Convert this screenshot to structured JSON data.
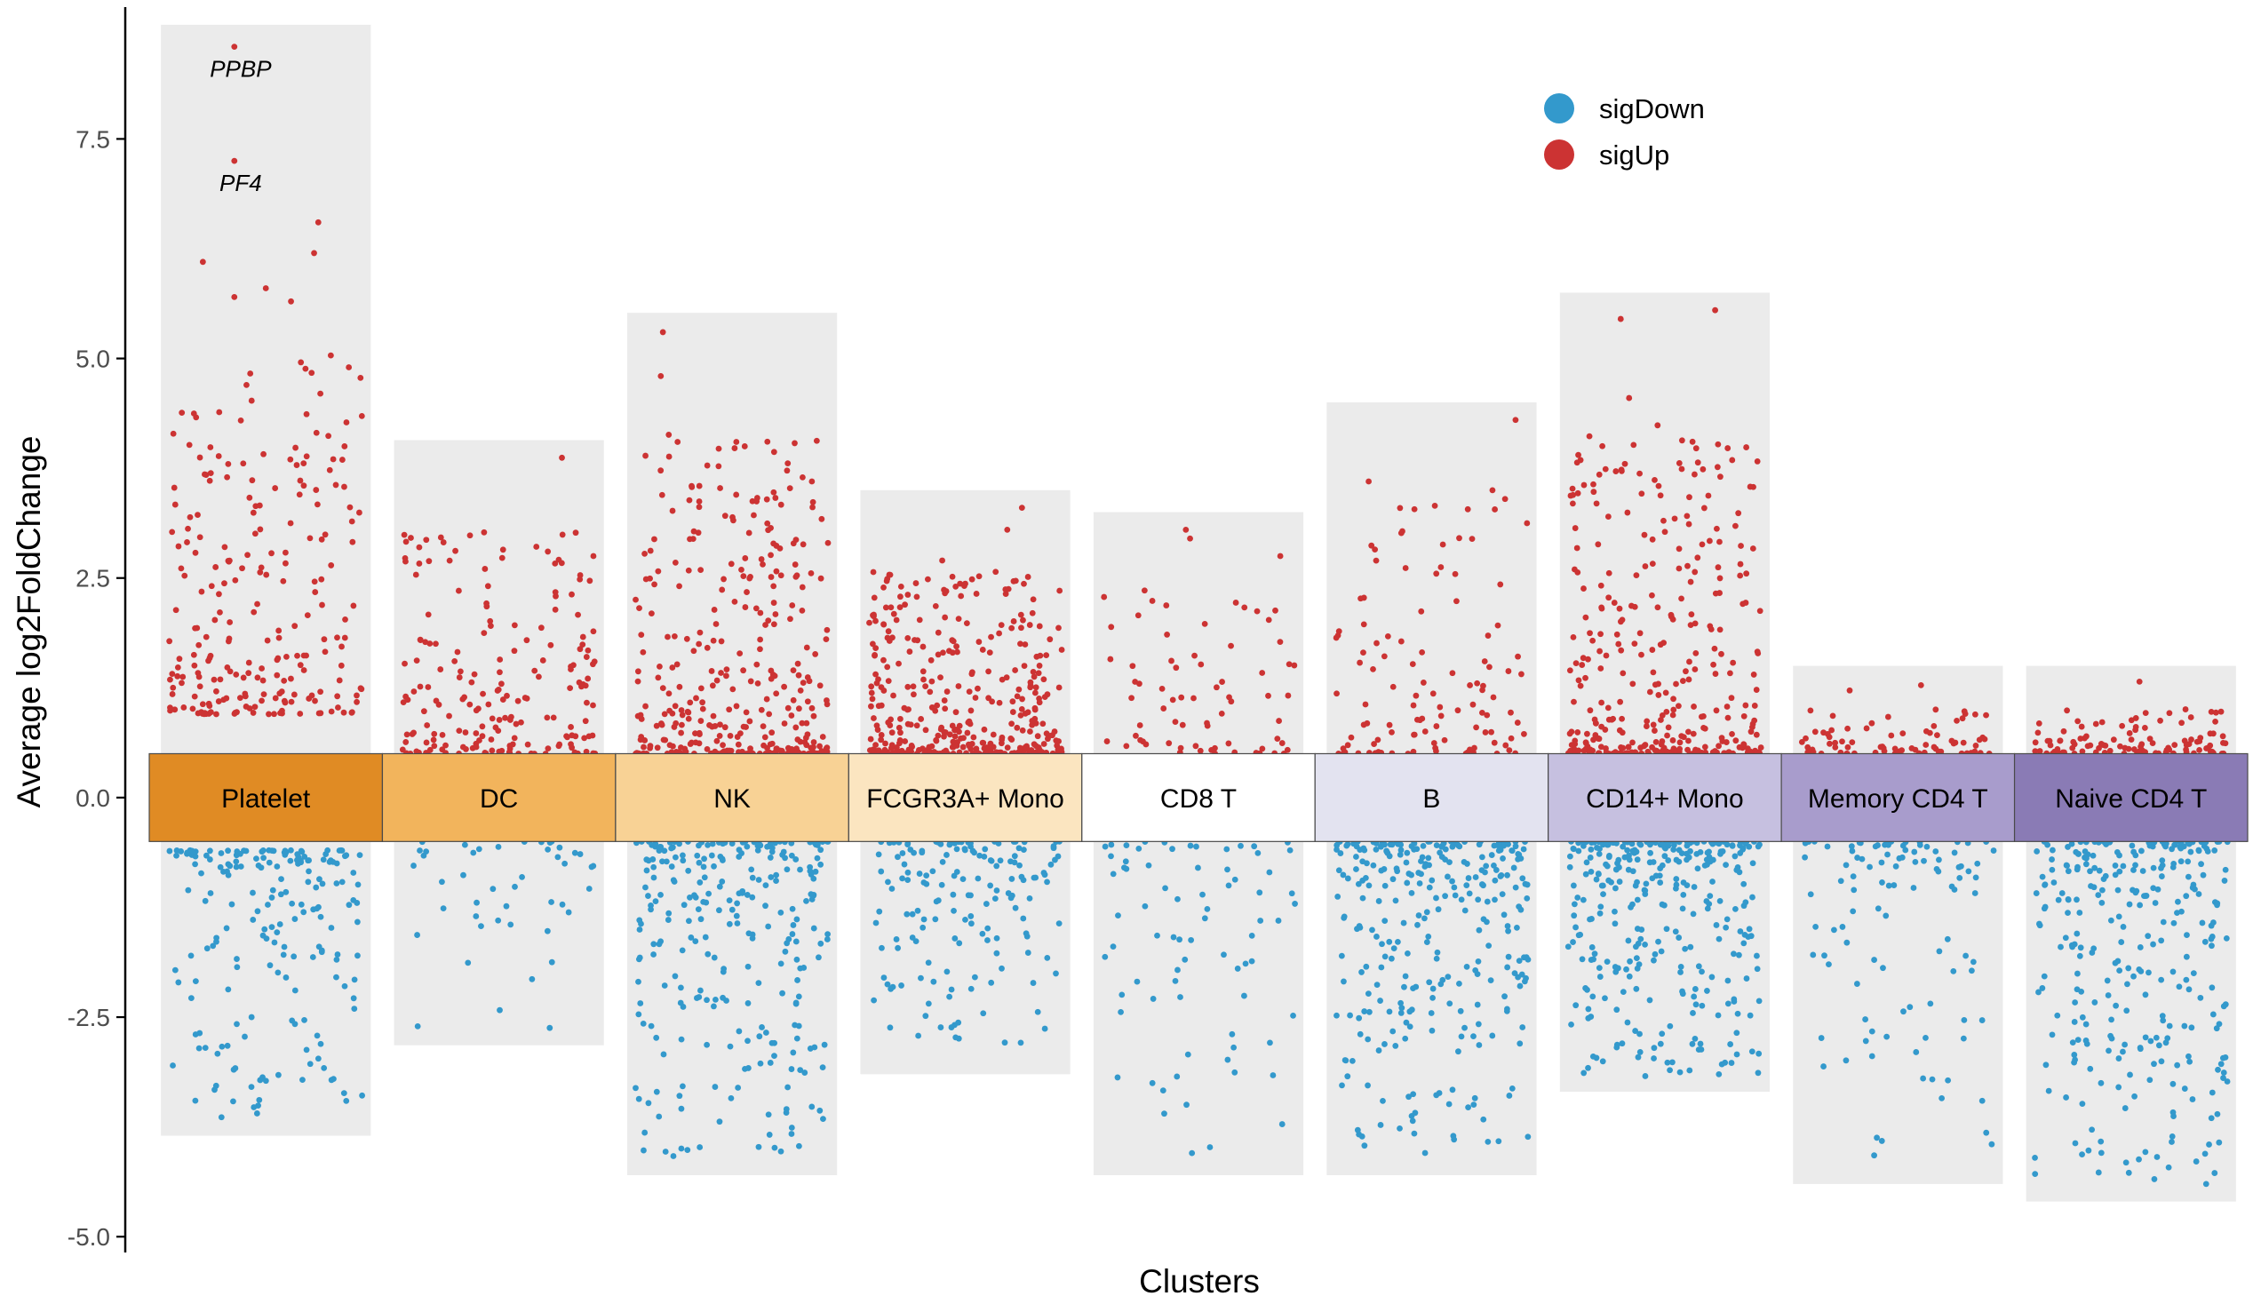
{
  "chart_data": {
    "type": "scatter",
    "title": "",
    "xlabel": "Clusters",
    "ylabel": "Average log2FoldChange",
    "ylim": [
      -5.2,
      8.9
    ],
    "yticks": [
      7.5,
      5.0,
      2.5,
      0.0,
      -2.5,
      -5.0
    ],
    "ytick_labels": [
      "7.5",
      "5.0",
      "2.5",
      "0.0",
      "-2.5",
      "-5.0"
    ],
    "band_half_height": 0.5,
    "legend": {
      "placement": "top-right",
      "entries": [
        {
          "name": "sigDown",
          "color": "#3399cc"
        },
        {
          "name": "sigUp",
          "color": "#cc3333"
        }
      ]
    },
    "clusters": [
      {
        "name": "Platelet",
        "color": "#e08b24",
        "bg_max": 8.8,
        "bg_min": -3.85,
        "up_min": 0.95,
        "up_max": 6.6,
        "down_min": -3.65,
        "down_max": -0.6,
        "n_up": 230,
        "n_down": 190,
        "up_points": [
          [
            0.35,
            8.55
          ],
          [
            0.35,
            7.25
          ],
          [
            0.2,
            6.1
          ],
          [
            0.75,
            6.55
          ],
          [
            0.73,
            6.2
          ],
          [
            0.35,
            5.7
          ],
          [
            0.5,
            5.8
          ],
          [
            0.62,
            5.65
          ]
        ]
      },
      {
        "name": "DC",
        "color": "#f2b45c",
        "bg_max": 4.07,
        "bg_min": -2.82,
        "up_min": 0.5,
        "up_max": 3.9,
        "down_min": -2.65,
        "down_max": -0.5,
        "n_up": 190,
        "n_down": 45,
        "up_points": [
          [
            0.8,
            3.87
          ],
          [
            0.12,
            2.85
          ],
          [
            0.95,
            2.75
          ]
        ]
      },
      {
        "name": "NK",
        "color": "#f8d295",
        "bg_max": 5.52,
        "bg_min": -4.3,
        "up_min": 0.5,
        "up_max": 5.3,
        "down_min": -4.1,
        "down_max": -0.5,
        "n_up": 330,
        "n_down": 270,
        "up_points": [
          [
            0.17,
            5.3
          ],
          [
            0.16,
            4.8
          ],
          [
            0.24,
            4.05
          ],
          [
            0.52,
            4.05
          ],
          [
            0.56,
            4.0
          ],
          [
            0.88,
            3.6
          ]
        ]
      },
      {
        "name": "FCGR3A+ Mono",
        "color": "#fbe5c0",
        "bg_max": 3.5,
        "bg_min": -3.15,
        "up_min": 0.5,
        "up_max": 3.3,
        "down_min": -2.95,
        "down_max": -0.5,
        "n_up": 380,
        "n_down": 160,
        "up_points": [
          [
            0.77,
            3.3
          ],
          [
            0.7,
            3.05
          ],
          [
            0.39,
            2.7
          ]
        ]
      },
      {
        "name": "CD8 T",
        "color": "#ffffff",
        "bg_max": 3.25,
        "bg_min": -4.3,
        "up_min": 0.5,
        "up_max": 3.05,
        "down_min": -4.05,
        "down_max": -0.5,
        "n_up": 70,
        "n_down": 75,
        "up_points": [
          [
            0.44,
            3.05
          ],
          [
            0.46,
            2.95
          ],
          [
            0.89,
            2.75
          ]
        ]
      },
      {
        "name": "B",
        "color": "#e3e3f0",
        "bg_max": 4.5,
        "bg_min": -4.3,
        "up_min": 0.5,
        "up_max": 4.3,
        "down_min": -4.05,
        "down_max": -0.5,
        "n_up": 110,
        "n_down": 300,
        "up_points": [
          [
            0.9,
            4.3
          ],
          [
            0.2,
            3.6
          ],
          [
            0.79,
            3.5
          ],
          [
            0.85,
            3.4
          ]
        ]
      },
      {
        "name": "CD14+ Mono",
        "color": "#c6c0e0",
        "bg_max": 5.75,
        "bg_min": -3.35,
        "up_min": 0.5,
        "up_max": 5.55,
        "down_min": -3.2,
        "down_max": -0.5,
        "n_up": 340,
        "n_down": 320,
        "up_points": [
          [
            0.29,
            5.45
          ],
          [
            0.74,
            5.55
          ],
          [
            0.33,
            4.55
          ],
          [
            0.31,
            3.8
          ]
        ]
      },
      {
        "name": "Memory CD4 T",
        "color": "#a89ccc",
        "bg_max": 1.5,
        "bg_min": -4.4,
        "up_min": 0.5,
        "up_max": 1.3,
        "down_min": -4.2,
        "down_max": -0.5,
        "n_up": 75,
        "n_down": 105,
        "up_points": [
          [
            0.61,
            1.28
          ],
          [
            0.27,
            1.22
          ]
        ]
      },
      {
        "name": "Naive CD4 T",
        "color": "#8a7bb5",
        "bg_max": 1.5,
        "bg_min": -4.6,
        "up_min": 0.5,
        "up_max": 1.3,
        "down_min": -4.4,
        "down_max": -0.5,
        "n_up": 105,
        "n_down": 290,
        "up_points": [
          [
            0.54,
            1.32
          ]
        ]
      }
    ],
    "annotations": [
      {
        "gene": "PPBP",
        "cluster": "Platelet",
        "x_frac": 0.38,
        "y": 8.55
      },
      {
        "gene": "PF4",
        "cluster": "Platelet",
        "x_frac": 0.38,
        "y": 7.25
      }
    ]
  }
}
